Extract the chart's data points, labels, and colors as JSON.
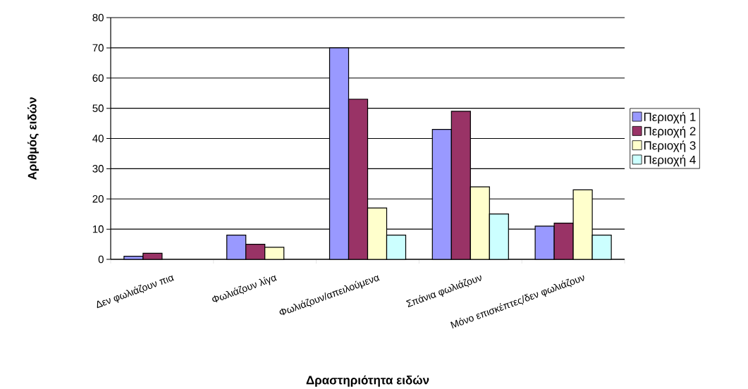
{
  "chart_data": {
    "type": "bar",
    "xlabel": "Δραστηριότητα ειδών",
    "ylabel": "Αριθμός ειδών",
    "categories": [
      "Δεν φωλιάζουν πια",
      "Φωλιάζουν λίγα",
      "Φωλιάζουν/απειλούμενα",
      "Σπάνια φωλιάζουν",
      "Μόνο επισκέπτες/δεν φωλιάζουν"
    ],
    "series": [
      {
        "name": "Περιοχή 1",
        "color": "#9999ff",
        "values": [
          1,
          8,
          70,
          43,
          11
        ]
      },
      {
        "name": "Περιοχή 2",
        "color": "#993366",
        "values": [
          2,
          5,
          53,
          49,
          12
        ]
      },
      {
        "name": "Περιοχή 3",
        "color": "#ffffcc",
        "values": [
          null,
          4,
          17,
          24,
          23
        ]
      },
      {
        "name": "Περιοχή 4",
        "color": "#ccffff",
        "values": [
          null,
          null,
          8,
          15,
          8
        ]
      }
    ],
    "ylim": [
      0,
      80
    ],
    "yticks": [
      0,
      10,
      20,
      30,
      40,
      50,
      60,
      70,
      80
    ],
    "grid": "y",
    "legend": "right"
  }
}
